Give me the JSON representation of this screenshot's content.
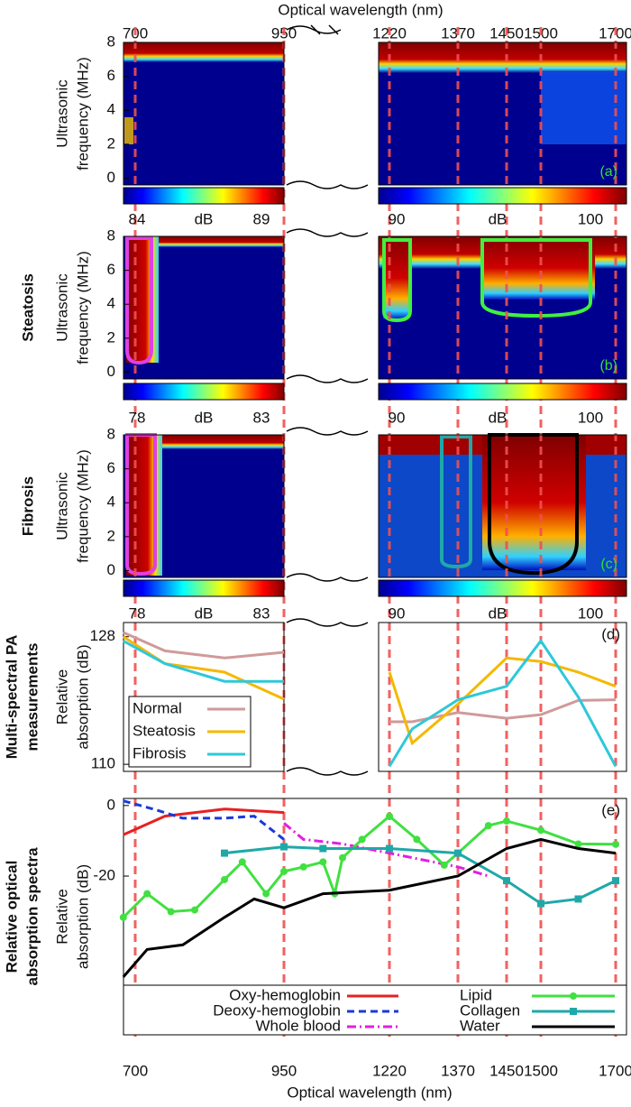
{
  "x_axis": {
    "label": "Optical wavelength (nm)",
    "ticks": [
      700,
      950,
      1220,
      1370,
      1450,
      1500,
      1700
    ]
  },
  "chart_data": [
    {
      "type": "heatmap",
      "row_label": [],
      "tag": "(a)",
      "ylabel": [
        "Ultrasonic",
        "frequency (MHz)"
      ],
      "ylim": [
        -0.4,
        8
      ],
      "yticks": [
        0,
        2,
        4,
        6,
        8
      ],
      "colorbars": [
        {
          "ticks": [
            84,
            89
          ],
          "label": "dB"
        },
        {
          "ticks": [
            90,
            100
          ],
          "label": "dB"
        }
      ]
    },
    {
      "type": "heatmap",
      "row_label": [
        "Steatosis"
      ],
      "tag": "(b)",
      "ylabel": [
        "Ultrasonic",
        "frequency (MHz)"
      ],
      "ylim": [
        -0.4,
        8
      ],
      "yticks": [
        0,
        2,
        4,
        6,
        8
      ],
      "colorbars": [
        {
          "ticks": [
            78,
            83
          ],
          "label": "dB"
        },
        {
          "ticks": [
            90,
            100
          ],
          "label": "dB"
        }
      ]
    },
    {
      "type": "heatmap",
      "row_label": [
        "Fibrosis"
      ],
      "tag": "(c)",
      "ylabel": [
        "Ultrasonic",
        "frequency (MHz)"
      ],
      "ylim": [
        -0.4,
        8
      ],
      "yticks": [
        0,
        2,
        4,
        6,
        8
      ],
      "colorbars": [
        {
          "ticks": [
            78,
            83
          ],
          "label": "dB"
        },
        {
          "ticks": [
            90,
            100
          ],
          "label": "dB"
        }
      ]
    },
    {
      "type": "line",
      "row_label": [
        "Multi-spectral PA",
        "measurements"
      ],
      "tag": "(d)",
      "ylabel": [
        "Relative",
        "absorption (dB)"
      ],
      "ylim": [
        109,
        130
      ],
      "yticks": [
        110,
        128
      ],
      "legend": "lower left",
      "x": [
        680,
        750,
        850,
        950,
        1100,
        1220,
        1270,
        1370,
        1450,
        1500,
        1600,
        1700
      ],
      "series": [
        {
          "name": "Normal",
          "color": "#d09a9a",
          "values": [
            128.6,
            126,
            125,
            125.8,
            null,
            116,
            116,
            117.3,
            116.5,
            117,
            119,
            119.1
          ]
        },
        {
          "name": "Steatosis",
          "color": "#f5b800",
          "values": [
            128,
            124.2,
            123,
            119.2,
            null,
            123,
            113,
            118.5,
            125,
            124.5,
            123,
            121
          ]
        },
        {
          "name": "Fibrosis",
          "color": "#2ec8d8",
          "values": [
            127.4,
            124.2,
            121.7,
            121.7,
            null,
            109.7,
            115,
            119.1,
            121,
            127.4,
            119.5,
            109.7
          ]
        }
      ]
    },
    {
      "type": "line",
      "row_label": [
        "Relative optical",
        "absorption spectra"
      ],
      "tag": "(e)",
      "ylabel": [
        "Relative",
        "absorption (dB)"
      ],
      "ylim": [
        -65,
        2
      ],
      "yticks": [
        0,
        -20
      ],
      "legend": "bottom",
      "series": [
        {
          "name": "Oxy-hemoglobin",
          "color": "#e82020",
          "dash": "solid",
          "x": [
            680,
            750,
            850,
            950
          ],
          "values": [
            -8.3,
            -3,
            -1,
            -2
          ]
        },
        {
          "name": "Deoxy-hemoglobin",
          "color": "#1a3ad8",
          "dash": "dashed",
          "x": [
            680,
            730,
            780,
            850,
            900,
            950
          ],
          "values": [
            1.3,
            -1,
            -3.6,
            -3.6,
            -3,
            -9.6
          ]
        },
        {
          "name": "Whole blood",
          "color": "#e020e0",
          "dash": "dashdot",
          "x": [
            950,
            1000,
            1100,
            1220,
            1370,
            1420
          ],
          "values": [
            -5,
            -9.6,
            -10.9,
            -13.5,
            -17.4,
            -20
          ]
        },
        {
          "name": "Lipid",
          "color": "#40e040",
          "dash": "solid",
          "marker": "circle",
          "x": [
            680,
            720,
            760,
            800,
            850,
            880,
            920,
            950,
            1000,
            1050,
            1080,
            1100,
            1150,
            1220,
            1280,
            1340,
            1370,
            1420,
            1450,
            1500,
            1600,
            1700
          ],
          "values": [
            -31.7,
            -25,
            -30.1,
            -29.6,
            -21,
            -16,
            -25,
            -18.7,
            -17.4,
            -16,
            -25,
            -14.8,
            -9.6,
            -3,
            -9.6,
            -16.9,
            -13.5,
            -5.7,
            -4.4,
            -7,
            -10.9,
            -11
          ]
        },
        {
          "name": "Collagen",
          "color": "#20a8a8",
          "dash": "solid",
          "marker": "square",
          "x": [
            850,
            950,
            1050,
            1220,
            1370,
            1450,
            1500,
            1600,
            1700
          ],
          "values": [
            -13.5,
            -11.7,
            -12.2,
            -12.2,
            -13.5,
            -21.3,
            -27.8,
            -26.5,
            -21.3
          ]
        },
        {
          "name": "Water",
          "color": "#000000",
          "dash": "solid",
          "x": [
            680,
            720,
            780,
            850,
            900,
            950,
            1050,
            1220,
            1370,
            1450,
            1500,
            1600,
            1700
          ],
          "values": [
            -48.6,
            -40.8,
            -39.5,
            -31.7,
            -26.5,
            -29,
            -25,
            -24,
            -20,
            -12.2,
            -9.6,
            -12.2,
            -13.5
          ]
        }
      ]
    }
  ]
}
